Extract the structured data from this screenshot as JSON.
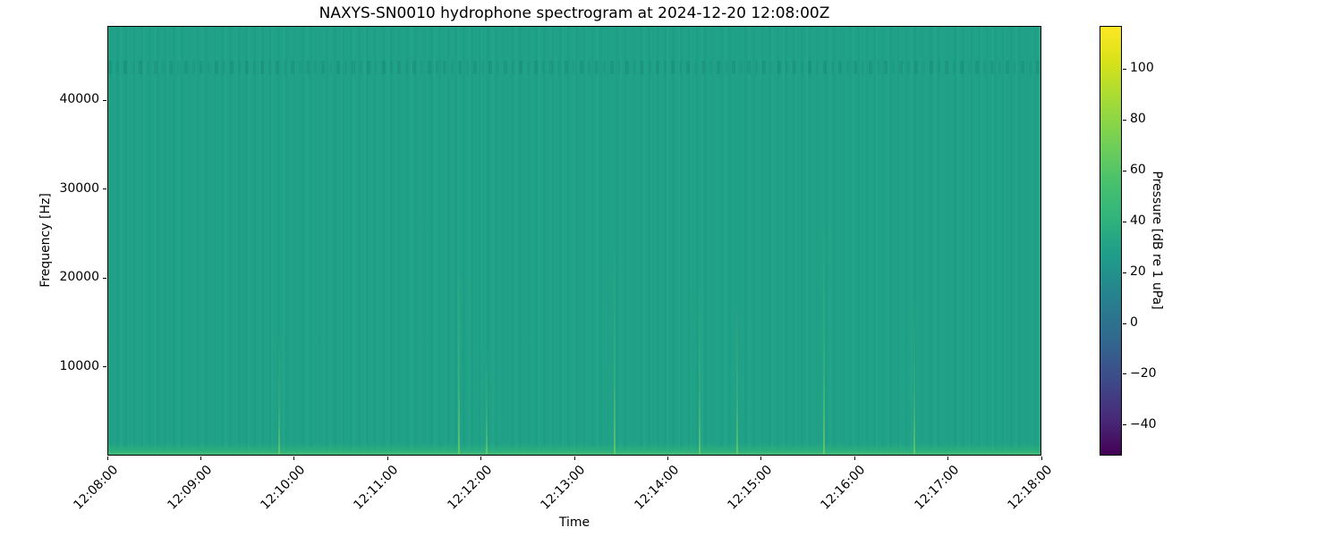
{
  "figure": {
    "title": "NAXYS-SN0010 hydrophone spectrogram at 2024-12-20 12:08:00Z",
    "xlabel": "Time",
    "ylabel": "Frequency [Hz]",
    "colorbar_label": "Pressure [dB re 1 uPa]"
  },
  "chart_data": {
    "type": "heatmap",
    "subtype": "spectrogram",
    "title": "NAXYS-SN0010 hydrophone spectrogram at 2024-12-20 12:08:00Z",
    "xlabel": "Time",
    "ylabel": "Frequency [Hz]",
    "x_ticks": [
      "12:08:00",
      "12:09:00",
      "12:10:00",
      "12:11:00",
      "12:12:00",
      "12:13:00",
      "12:14:00",
      "12:15:00",
      "12:16:00",
      "12:17:00",
      "12:18:00"
    ],
    "x_tick_rotation_deg": 45,
    "time_start": "12:08:00",
    "time_end": "12:18:00",
    "y_ticks": [
      10000,
      20000,
      30000,
      40000
    ],
    "ylim": [
      0,
      48000
    ],
    "grid": false,
    "colorbar": {
      "label": "Pressure [dB re 1 uPa]",
      "ticks": [
        100,
        80,
        60,
        40,
        20,
        0,
        -20,
        -40
      ],
      "vmin": -52,
      "vmax": 117,
      "colormap": "viridis",
      "position": "right"
    },
    "summary": {
      "background_level_db": 45,
      "low_frequency_band": {
        "freq_range_hz": [
          0,
          1200
        ],
        "level_db": 62,
        "description": "brighter green band of elevated broadband noise at the lowest frequencies"
      },
      "narrowband_feature": {
        "center_freq_hz": 44000,
        "description": "faint mottled horizontal line of slightly darker pixels near 44 kHz"
      },
      "vertical_striping": "very faint vertical striations across the whole record (sub-dB level variation)",
      "transients": [
        {
          "time": "12:09:50",
          "reach_frac": 0.3,
          "note": "faint low-frequency streak"
        },
        {
          "time": "12:11:45",
          "reach_frac": 0.45,
          "note": "faint low-frequency streak"
        },
        {
          "time": "12:12:03",
          "reach_frac": 0.25,
          "note": "bright spot at band bottom"
        },
        {
          "time": "12:13:25",
          "reach_frac": 0.5,
          "note": "faint low-frequency streak"
        },
        {
          "time": "12:14:20",
          "reach_frac": 0.4,
          "note": "faint low-frequency streak"
        },
        {
          "time": "12:14:44",
          "reach_frac": 0.35,
          "note": "faint low-frequency streak"
        },
        {
          "time": "12:15:40",
          "reach_frac": 0.55,
          "note": "faint low-frequency streak"
        },
        {
          "time": "12:16:38",
          "reach_frac": 0.38,
          "note": "faint low-frequency streak"
        }
      ]
    }
  },
  "colors": {
    "background_teal": "#1fa287",
    "low_band_green": "#3db877",
    "colorbar_top": "#fde725",
    "colorbar_bottom": "#440154",
    "axes_edge": "#000000",
    "figure_background": "#ffffff"
  }
}
